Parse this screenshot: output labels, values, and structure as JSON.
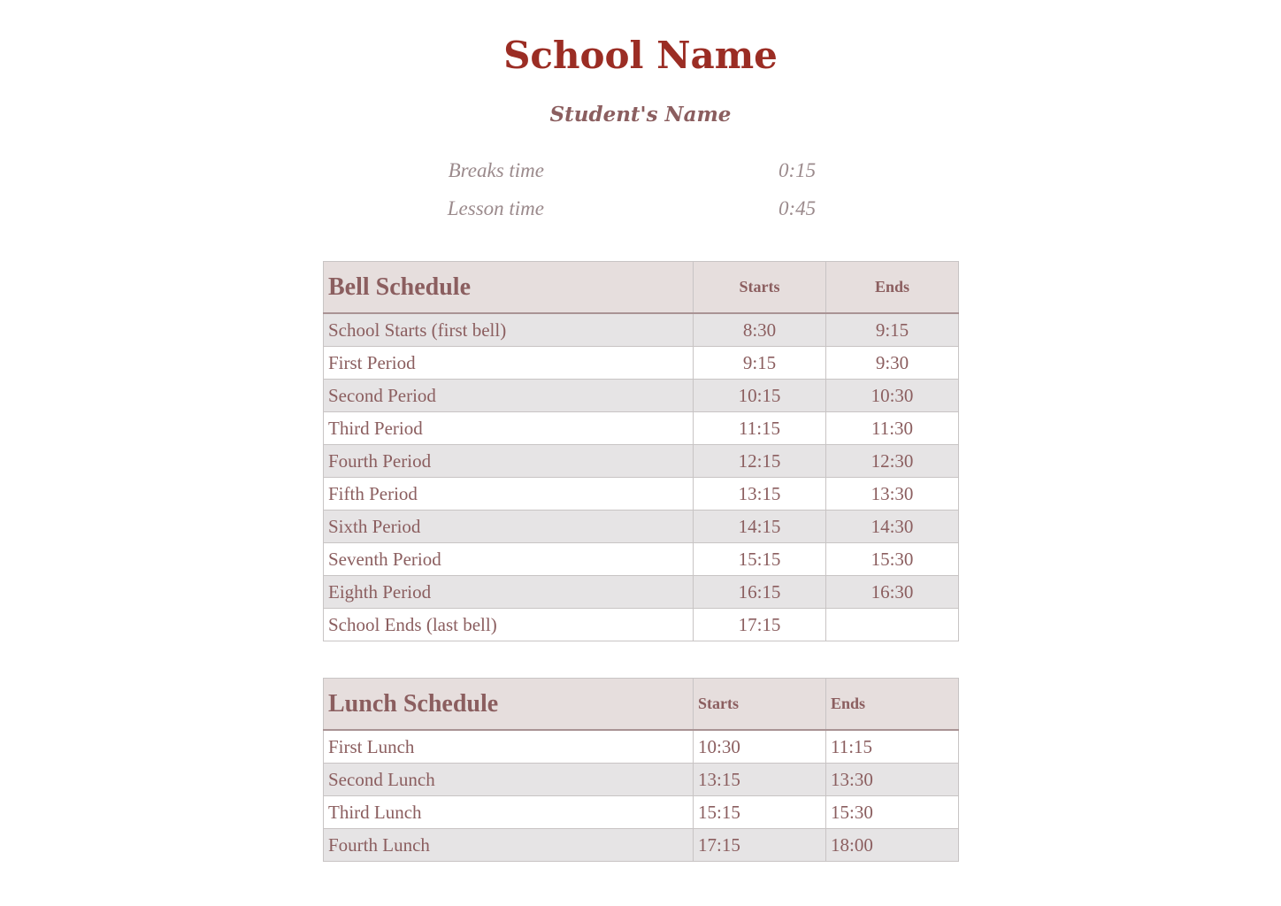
{
  "title": "School Name",
  "student": "Student's Name",
  "settings": [
    {
      "label": "Breaks time",
      "value": "0:15"
    },
    {
      "label": "Lesson time",
      "value": "0:45"
    }
  ],
  "bell": {
    "heading": "Bell Schedule",
    "starts": "Starts",
    "ends": "Ends",
    "rows": [
      [
        "School Starts (first bell)",
        "8:30",
        "9:15"
      ],
      [
        "First Period",
        "9:15",
        "9:30"
      ],
      [
        "Second Period",
        "10:15",
        "10:30"
      ],
      [
        "Third Period",
        "11:15",
        "11:30"
      ],
      [
        "Fourth Period",
        "12:15",
        "12:30"
      ],
      [
        "Fifth Period",
        "13:15",
        "13:30"
      ],
      [
        "Sixth Period",
        "14:15",
        "14:30"
      ],
      [
        "Seventh Period",
        "15:15",
        "15:30"
      ],
      [
        "Eighth Period",
        "16:15",
        "16:30"
      ],
      [
        "School Ends (last bell)",
        "17:15",
        ""
      ]
    ]
  },
  "lunch": {
    "heading": "Lunch Schedule",
    "starts": "Starts",
    "ends": "Ends",
    "rows": [
      [
        "First Lunch",
        "10:30",
        "11:15"
      ],
      [
        "Second Lunch",
        "13:15",
        "13:30"
      ],
      [
        "Third Lunch",
        "15:15",
        "15:30"
      ],
      [
        "Fourth Lunch",
        "17:15",
        "18:00"
      ]
    ]
  },
  "colors": {
    "title": "#9b2d24",
    "text": "#8b5e5f",
    "header_bg": "#e6dedd",
    "alt_row": "#e6e4e5"
  }
}
